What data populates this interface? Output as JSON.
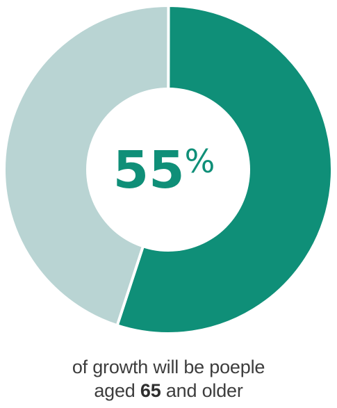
{
  "chart_data": {
    "type": "pie",
    "variant": "donut",
    "slices": [
      {
        "label": "65 and older",
        "value": 55,
        "color": "#0f8f78"
      },
      {
        "label": "",
        "value": 45,
        "color": "#b9d4d3"
      }
    ],
    "center_number": "55",
    "center_unit": "%"
  },
  "caption": {
    "line1": "of growth will be poeple",
    "line2_prefix": "aged ",
    "line2_bold": "65",
    "line2_suffix": " and older"
  }
}
